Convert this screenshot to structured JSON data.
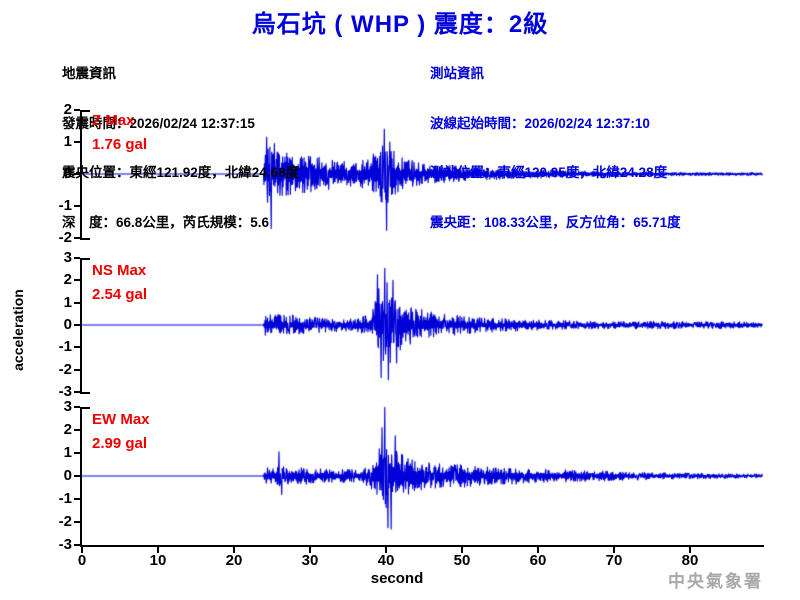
{
  "title": "烏石坑 ( WHP )  震度：2級",
  "title_color": "#0000dd",
  "quake_info": {
    "heading": "地震資訊",
    "lines": [
      "發震時間：2026/02/24 12:37:15",
      "震央位置：東經121.92度，北緯24.68度",
      "深　度：66.8公里，芮氏規模：5.6"
    ]
  },
  "station_info": {
    "heading": "測站資訊",
    "color": "#0000dd",
    "lines": [
      "波線起始時間：2026/02/24 12:37:10",
      "測站位置：東經120.95度，北緯24.28度",
      "震央距：108.33公里，反方位角：65.71度"
    ]
  },
  "watermark": "中央氣象署",
  "chart_data": {
    "type": "line",
    "xlabel": "second",
    "ylabel": "acceleration",
    "x_ticks": [
      0,
      10,
      20,
      30,
      40,
      50,
      60,
      70,
      80
    ],
    "x_range": [
      0,
      89.6
    ],
    "trace_color": "#0000d8",
    "label_color": "#ee0000",
    "channels": [
      {
        "name": "Z Max",
        "max_label": "1.76 gal",
        "max_gal": 1.76,
        "ylim": [
          -2,
          2
        ],
        "y_ticks": [
          2,
          1,
          0,
          -1,
          -2
        ],
        "onset_s": 23.9,
        "seed": 7,
        "envelope": [
          [
            0,
            0
          ],
          [
            23.85,
            0
          ],
          [
            24.0,
            0.85
          ],
          [
            24.7,
            0.95
          ],
          [
            26,
            0.7
          ],
          [
            28,
            0.62
          ],
          [
            31,
            0.55
          ],
          [
            34,
            0.42
          ],
          [
            36.5,
            0.4
          ],
          [
            38,
            0.55
          ],
          [
            39,
            0.85
          ],
          [
            39.8,
            1.05
          ],
          [
            40.5,
            0.9
          ],
          [
            41.5,
            0.6
          ],
          [
            43,
            0.45
          ],
          [
            45,
            0.33
          ],
          [
            48,
            0.27
          ],
          [
            52,
            0.2
          ],
          [
            56,
            0.16
          ],
          [
            60,
            0.13
          ],
          [
            65,
            0.1
          ],
          [
            70,
            0.08
          ],
          [
            75,
            0.06
          ],
          [
            80,
            0.05
          ],
          [
            89.6,
            0.04
          ]
        ],
        "spikes": [
          [
            24.3,
            1.15
          ],
          [
            24.9,
            -1.7
          ],
          [
            25.3,
            0.95
          ],
          [
            39.75,
            1.4
          ],
          [
            40.1,
            -1.76
          ],
          [
            40.5,
            1.0
          ]
        ]
      },
      {
        "name": "NS Max",
        "max_label": "2.54 gal",
        "max_gal": 2.54,
        "ylim": [
          -3,
          3
        ],
        "y_ticks": [
          3,
          2,
          1,
          0,
          -1,
          -2,
          -3
        ],
        "onset_s": 23.9,
        "seed": 13,
        "envelope": [
          [
            0,
            0
          ],
          [
            23.85,
            0
          ],
          [
            24.0,
            0.55
          ],
          [
            25,
            0.5
          ],
          [
            27,
            0.48
          ],
          [
            30,
            0.38
          ],
          [
            33,
            0.3
          ],
          [
            36,
            0.28
          ],
          [
            37.5,
            0.45
          ],
          [
            38.5,
            1.1
          ],
          [
            39.3,
            1.9
          ],
          [
            40.2,
            2.0
          ],
          [
            41,
            1.5
          ],
          [
            42,
            1.1
          ],
          [
            43.5,
            0.85
          ],
          [
            45,
            0.65
          ],
          [
            47,
            0.5
          ],
          [
            50,
            0.42
          ],
          [
            53,
            0.32
          ],
          [
            57,
            0.27
          ],
          [
            61,
            0.22
          ],
          [
            66,
            0.18
          ],
          [
            71,
            0.15
          ],
          [
            76,
            0.18
          ],
          [
            81,
            0.15
          ],
          [
            85,
            0.17
          ],
          [
            89.6,
            0.1
          ]
        ],
        "spikes": [
          [
            38.9,
            2.25
          ],
          [
            39.35,
            -2.35
          ],
          [
            39.85,
            2.54
          ],
          [
            40.3,
            -2.45
          ],
          [
            40.9,
            2.0
          ],
          [
            41.4,
            -1.7
          ]
        ]
      },
      {
        "name": "EW Max",
        "max_label": "2.99 gal",
        "max_gal": 2.99,
        "ylim": [
          -3,
          3
        ],
        "y_ticks": [
          3,
          2,
          1,
          0,
          -1,
          -2,
          -3
        ],
        "onset_s": 23.9,
        "seed": 29,
        "envelope": [
          [
            0,
            0
          ],
          [
            23.85,
            0
          ],
          [
            24.0,
            0.45
          ],
          [
            25.5,
            0.42
          ],
          [
            28,
            0.38
          ],
          [
            31,
            0.33
          ],
          [
            34,
            0.28
          ],
          [
            36.5,
            0.28
          ],
          [
            38,
            0.5
          ],
          [
            39,
            1.1
          ],
          [
            39.7,
            1.7
          ],
          [
            40.4,
            1.5
          ],
          [
            41.3,
            1.15
          ],
          [
            42.5,
            0.9
          ],
          [
            44,
            0.72
          ],
          [
            46,
            0.6
          ],
          [
            48.5,
            0.52
          ],
          [
            51,
            0.46
          ],
          [
            54,
            0.4
          ],
          [
            58,
            0.34
          ],
          [
            62,
            0.28
          ],
          [
            66,
            0.24
          ],
          [
            70,
            0.2
          ],
          [
            75,
            0.16
          ],
          [
            80,
            0.12
          ],
          [
            85,
            0.1
          ],
          [
            89.6,
            0.08
          ]
        ],
        "spikes": [
          [
            25.9,
            1.05
          ],
          [
            26.3,
            -0.8
          ],
          [
            39.45,
            2.1
          ],
          [
            39.85,
            2.99
          ],
          [
            40.25,
            -2.25
          ],
          [
            40.7,
            -2.3
          ],
          [
            41.2,
            1.75
          ]
        ]
      }
    ]
  }
}
